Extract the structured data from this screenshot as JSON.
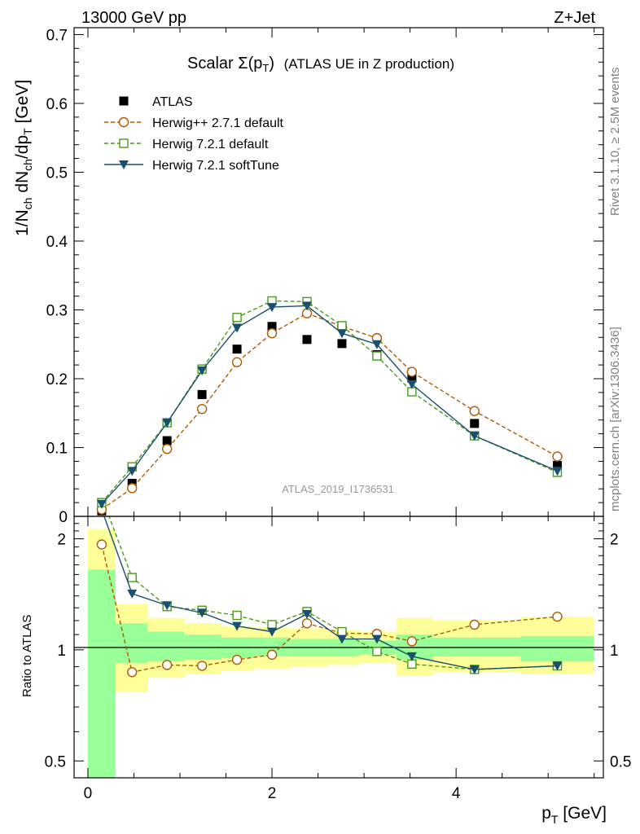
{
  "header": {
    "energy_label": "13000 GeV pp",
    "process_label": "Z+Jet"
  },
  "side_labels": {
    "rivet": "Rivet 3.1.10, ≥ 2.5M events",
    "mcplots": "mcplots.cern.ch [arXiv:1306.3436]"
  },
  "chart_data": [
    {
      "type": "scatter",
      "title_main": "Scalar Σ(p",
      "title_sub": "T",
      "title_close": ")",
      "title_rest": "(ATLAS UE in Z production)",
      "ylabel": "1/N_ch dN_ch/dp_T [GeV]",
      "ylim": [
        0,
        0.71
      ],
      "yticks": [
        "0",
        "0.1",
        "0.2",
        "0.3",
        "0.4",
        "0.5",
        "0.6",
        "0.7"
      ],
      "watermark": "ATLAS_2019_I1736531",
      "legend_position": "top-left",
      "x": [
        0.15,
        0.48,
        0.86,
        1.24,
        1.62,
        2.0,
        2.38,
        2.76,
        3.14,
        3.52,
        4.2,
        5.1
      ],
      "series": [
        {
          "name": "ATLAS",
          "color": "#000000",
          "marker": "square",
          "line": "none",
          "values": [
            0.008,
            0.048,
            0.11,
            0.177,
            0.243,
            0.276,
            0.257,
            0.251,
            0.235,
            0.201,
            0.135,
            0.074
          ]
        },
        {
          "name": "Herwig++ 2.7.1 default",
          "color": "#b05a00",
          "marker": "circle",
          "line": "dashed",
          "values": [
            0.01,
            0.041,
            0.098,
            0.156,
            0.224,
            0.266,
            0.295,
            0.276,
            0.259,
            0.21,
            0.153,
            0.087
          ]
        },
        {
          "name": "Herwig 7.2.1 default",
          "color": "#4a9a1a",
          "marker": "open-square",
          "line": "dashed",
          "values": [
            0.02,
            0.072,
            0.136,
            0.214,
            0.289,
            0.313,
            0.312,
            0.277,
            0.233,
            0.181,
            0.117,
            0.064
          ]
        },
        {
          "name": "Herwig 7.2.1 softTune",
          "color": "#1a4f6e",
          "marker": "triangle-down",
          "line": "solid",
          "values": [
            0.018,
            0.066,
            0.136,
            0.212,
            0.274,
            0.304,
            0.306,
            0.266,
            0.25,
            0.192,
            0.117,
            0.066
          ]
        }
      ]
    },
    {
      "type": "line",
      "ylabel": "Ratio to ATLAS",
      "xlabel": "p_T [GeV]",
      "scale": "log",
      "ylim": [
        0.45,
        2.3
      ],
      "yticks": [
        {
          "v": 0.5,
          "label": "0.5"
        },
        {
          "v": 1,
          "label": "1"
        },
        {
          "v": 2,
          "label": "2"
        }
      ],
      "xlim": [
        -0.15,
        5.6
      ],
      "xticks": [
        "0",
        "2",
        "4"
      ],
      "x": [
        0.15,
        0.48,
        0.86,
        1.24,
        1.62,
        2.0,
        2.38,
        2.76,
        3.14,
        3.52,
        4.2,
        5.1
      ],
      "bins": [
        [
          0,
          0.3
        ],
        [
          0.3,
          0.65
        ],
        [
          0.65,
          1.05
        ],
        [
          1.05,
          1.45
        ],
        [
          1.45,
          1.8
        ],
        [
          1.8,
          2.2
        ],
        [
          2.2,
          2.6
        ],
        [
          2.6,
          2.95
        ],
        [
          2.95,
          3.35
        ],
        [
          3.35,
          3.75
        ],
        [
          3.75,
          4.7
        ],
        [
          4.7,
          5.5
        ]
      ],
      "stat_band": [
        [
          0.36,
          1.65
        ],
        [
          0.92,
          1.18
        ],
        [
          0.93,
          1.12
        ],
        [
          0.94,
          1.1
        ],
        [
          0.95,
          1.08
        ],
        [
          0.96,
          1.08
        ],
        [
          0.96,
          1.07
        ],
        [
          0.96,
          1.07
        ],
        [
          0.97,
          1.06
        ],
        [
          0.94,
          1.1
        ],
        [
          0.96,
          1.08
        ],
        [
          0.93,
          1.09
        ]
      ],
      "total_band": [
        [
          0.34,
          2.12
        ],
        [
          0.77,
          1.33
        ],
        [
          0.84,
          1.22
        ],
        [
          0.86,
          1.18
        ],
        [
          0.88,
          1.16
        ],
        [
          0.89,
          1.15
        ],
        [
          0.9,
          1.14
        ],
        [
          0.91,
          1.13
        ],
        [
          0.92,
          1.12
        ],
        [
          0.85,
          1.22
        ],
        [
          0.87,
          1.2
        ],
        [
          0.86,
          1.23
        ]
      ],
      "series": [
        {
          "name": "Herwig++ 2.7.1 default",
          "color": "#b05a00",
          "marker": "circle",
          "line": "dashed",
          "values": [
            1.93,
            0.87,
            0.91,
            0.905,
            0.94,
            0.97,
            1.18,
            1.11,
            1.105,
            1.055,
            1.17,
            1.23
          ]
        },
        {
          "name": "Herwig 7.2.1 default",
          "color": "#4a9a1a",
          "marker": "open-square",
          "line": "dashed",
          "values": [
            2.6,
            1.57,
            1.31,
            1.28,
            1.24,
            1.17,
            1.27,
            1.12,
            0.99,
            0.915,
            0.885,
            0.905
          ]
        },
        {
          "name": "Herwig 7.2.1 softTune",
          "color": "#1a4f6e",
          "marker": "triangle-down",
          "line": "solid",
          "values": [
            2.4,
            1.42,
            1.32,
            1.26,
            1.16,
            1.12,
            1.25,
            1.07,
            1.07,
            0.96,
            0.885,
            0.905
          ]
        }
      ]
    }
  ]
}
